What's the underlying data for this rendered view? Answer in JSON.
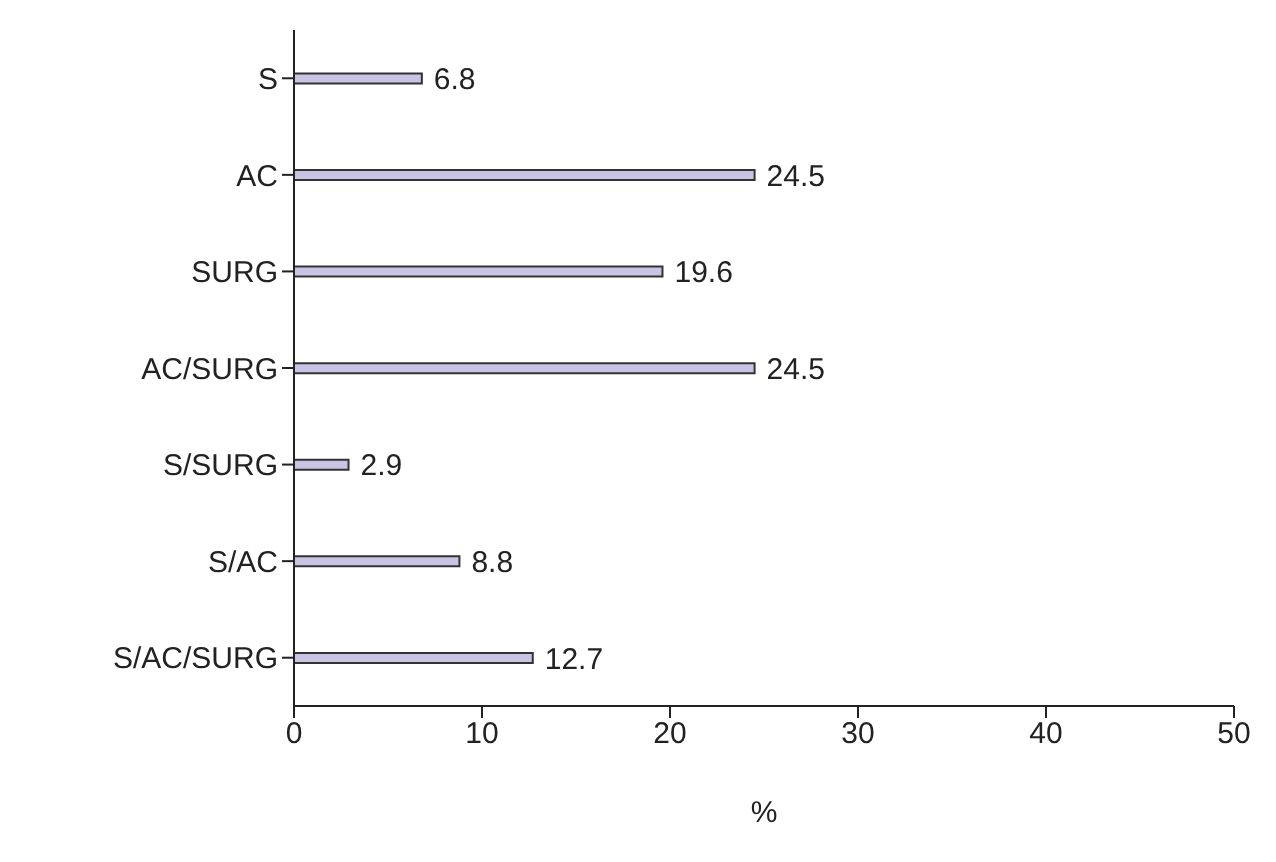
{
  "chart_data": {
    "type": "bar",
    "orientation": "horizontal",
    "categories": [
      "S",
      "AC",
      "SURG",
      "AC/SURG",
      "S/SURG",
      "S/AC",
      "S/AC/SURG"
    ],
    "values": [
      6.8,
      24.5,
      19.6,
      24.5,
      2.9,
      8.8,
      12.7
    ],
    "color": "#c8c4e4",
    "xlim": [
      0,
      50
    ],
    "xticks": [
      0,
      10,
      20,
      30,
      40,
      50
    ],
    "xlabel": "%",
    "data_labels": true,
    "grid": false,
    "legend": false
  }
}
